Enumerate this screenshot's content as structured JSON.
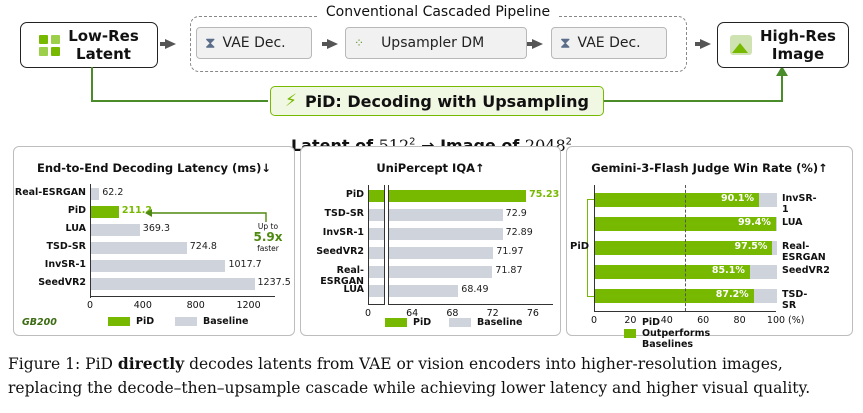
{
  "pipeline": {
    "input_label_1": "Low-Res",
    "input_label_2": "Latent",
    "group_title": "Conventional Cascaded Pipeline",
    "step_1": "VAE Dec.",
    "step_2": "Upsampler DM",
    "step_3": "VAE Dec.",
    "output_label_1": "High-Res",
    "output_label_2": "Image",
    "pid_label": "PiD: Decoding with Upsampling"
  },
  "colors": {
    "pid": "#76b900",
    "baseline": "#cfd4dc",
    "pid_box_bg": "#f0f7e2"
  },
  "section_title": {
    "prefix": "Latent of ",
    "a": "512",
    "middle": " → Image of ",
    "b": "2048",
    "exp": "2"
  },
  "chart_data": [
    {
      "type": "bar",
      "title": "End-to-End Decoding Latency (ms)↓",
      "categories": [
        "Real-ESRGAN",
        "PiD",
        "LUA",
        "TSD-SR",
        "InvSR-1",
        "SeedVR2"
      ],
      "values": [
        62.2,
        211.2,
        369.3,
        724.8,
        1017.7,
        1237.5
      ],
      "value_labels": [
        "62.2",
        "211.2",
        "369.3",
        "724.8",
        "1017.7",
        "1237.5"
      ],
      "xlim": [
        0,
        1400
      ],
      "xticks": [
        "0",
        "400",
        "800",
        "1200"
      ],
      "legend": [
        "PiD",
        "Baseline"
      ],
      "annotation": {
        "l1": "Up to",
        "l2": "5.9x",
        "l3": "faster"
      },
      "hardware": "GB200"
    },
    {
      "type": "bar",
      "title": "UniPercept IQA↑",
      "categories": [
        "PiD",
        "TSD-SR",
        "InvSR-1",
        "SeedVR2",
        "Real-ESRGAN",
        "LUA"
      ],
      "values": [
        75.23,
        72.9,
        72.89,
        71.97,
        71.87,
        68.49
      ],
      "value_labels": [
        "75.23",
        "72.9",
        "72.89",
        "71.97",
        "71.87",
        "68.49"
      ],
      "xlim": [
        60,
        78
      ],
      "axis_break": true,
      "xticks": [
        "0",
        "64",
        "68",
        "72",
        "76"
      ],
      "legend": [
        "PiD",
        "Baseline"
      ]
    },
    {
      "type": "bar",
      "title": "Gemini-3-Flash Judge Win Rate (%)↑",
      "categories": [
        "InvSR-1",
        "LUA",
        "Real-ESRGAN",
        "SeedVR2",
        "TSD-SR"
      ],
      "values": [
        90.1,
        99.4,
        97.5,
        85.1,
        87.2
      ],
      "value_labels": [
        "90.1%",
        "99.4%",
        "97.5%",
        "85.1%",
        "87.2%"
      ],
      "xlim": [
        0,
        100
      ],
      "xticks": [
        "0",
        "20",
        "40",
        "60",
        "80",
        "100"
      ],
      "x_unit": "(%)",
      "group_label": "PiD",
      "legend": [
        "PiD Outperforms Baselines"
      ]
    }
  ],
  "caption": {
    "fig": "Figure 1: PiD ",
    "bold": "directly",
    "rest": " decodes latents from VAE or vision encoders into higher-resolution images, replacing the decode–then–upsample cascade while achieving lower latency and higher visual quality."
  }
}
